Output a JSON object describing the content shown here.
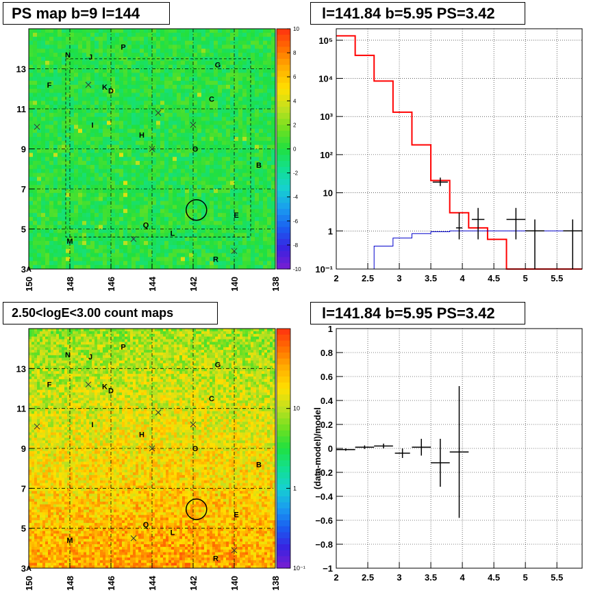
{
  "titles": {
    "ps_map": "PS map b=9 l=144",
    "spectrum": "l=141.84 b=5.95 PS=3.42",
    "count_map": "2.50<logE<3.00 count maps",
    "residual": "l=141.84 b=5.95 PS=3.42"
  },
  "colors": {
    "data": "#000000",
    "model_total": "#ff0000",
    "model_background": "#0000cc",
    "palette": [
      "#7a1fd1",
      "#3a22e0",
      "#1a5cf0",
      "#1a9cf0",
      "#16d0d0",
      "#12e090",
      "#20e040",
      "#70e020",
      "#c0e020",
      "#ffe000",
      "#ffb000",
      "#ff7000",
      "#ff3010"
    ]
  },
  "chart_data": [
    {
      "id": "ps_map",
      "type": "heatmap",
      "title": "PS map b=9 l=144",
      "xlabel": "",
      "ylabel": "",
      "x_ticks": [
        "150",
        "148",
        "146",
        "144",
        "142",
        "140",
        "138"
      ],
      "y_ticks": [
        "3",
        "5",
        "7",
        "9",
        "11",
        "13"
      ],
      "xlim": [
        150,
        138
      ],
      "ylim": [
        3,
        15
      ],
      "colorbar": {
        "scale": "linear",
        "range": [
          -10,
          10
        ],
        "ticks": [
          "10",
          "8",
          "6",
          "4",
          "2",
          "0",
          "-2",
          "-4",
          "-6",
          "-8",
          "-10"
        ]
      },
      "grid": true,
      "sources": [
        {
          "label": "N",
          "l": 148.1,
          "b": 13.7
        },
        {
          "label": "J",
          "l": 147.0,
          "b": 13.6
        },
        {
          "label": "P",
          "l": 145.4,
          "b": 14.1
        },
        {
          "label": "G",
          "l": 140.8,
          "b": 13.2
        },
        {
          "label": "F",
          "l": 149.0,
          "b": 12.2
        },
        {
          "label": "K",
          "l": 146.3,
          "b": 12.1
        },
        {
          "label": "D",
          "l": 146.0,
          "b": 11.9
        },
        {
          "label": "C",
          "l": 141.1,
          "b": 11.5
        },
        {
          "label": "I",
          "l": 146.9,
          "b": 10.2
        },
        {
          "label": "H",
          "l": 144.5,
          "b": 9.7
        },
        {
          "label": "O",
          "l": 141.9,
          "b": 9.0
        },
        {
          "label": "B",
          "l": 138.8,
          "b": 8.2
        },
        {
          "label": "E",
          "l": 139.9,
          "b": 5.7
        },
        {
          "label": "Q",
          "l": 144.3,
          "b": 5.2
        },
        {
          "label": "L",
          "l": 143.0,
          "b": 4.8
        },
        {
          "label": "M",
          "l": 148.0,
          "b": 4.4
        },
        {
          "label": "R",
          "l": 140.9,
          "b": 3.5
        },
        {
          "label": "A",
          "l": 150.0,
          "b": 3.0
        }
      ],
      "crosses": [
        [
          149.6,
          10.1
        ],
        [
          147.1,
          12.2
        ],
        [
          143.7,
          10.8
        ],
        [
          142.0,
          10.2
        ],
        [
          144.0,
          9.0
        ],
        [
          144.9,
          4.5
        ],
        [
          140.0,
          3.9
        ]
      ],
      "circle": {
        "l": 141.84,
        "b": 5.95,
        "r": 0.5
      }
    },
    {
      "id": "spectrum",
      "type": "line",
      "title": "l=141.84 b=5.95 PS=3.42",
      "xlabel": "",
      "ylabel": "",
      "xlim": [
        2,
        5.9
      ],
      "ylim": [
        0.1,
        200000
      ],
      "yscale": "log",
      "x_ticks": [
        "2",
        "2.5",
        "3",
        "3.5",
        "4",
        "4.5",
        "5",
        "5.5"
      ],
      "y_ticks": [
        "10⁻¹",
        "1",
        "10",
        "10²",
        "10³",
        "10⁴",
        "10⁵"
      ],
      "grid": true,
      "series": [
        {
          "role": "model_total",
          "style": "step",
          "bin_edges": [
            2,
            2.3,
            2.6,
            2.9,
            3.2,
            3.5,
            3.8,
            4.1,
            4.4,
            4.7,
            5.0,
            5.3,
            5.6,
            5.9
          ],
          "values": [
            130000,
            40000,
            8500,
            1300,
            180,
            21,
            3,
            1.2,
            0.6,
            0.1,
            0.1,
            0.1,
            0.1
          ]
        },
        {
          "role": "model_background",
          "style": "step",
          "bin_edges": [
            2,
            2.3,
            2.6,
            2.9,
            3.2,
            3.5,
            3.8,
            4.1,
            4.4,
            4.7,
            5.0,
            5.3,
            5.6,
            5.9
          ],
          "values": [
            0.02,
            0.05,
            0.4,
            0.65,
            0.85,
            0.95,
            1.0,
            1.0,
            1.0,
            1.0,
            1.0,
            1.0,
            1.0
          ]
        },
        {
          "role": "data",
          "style": "errorbar",
          "points": [
            {
              "x": 3.65,
              "y": 19,
              "xerr": 0.12,
              "ylo": 15,
              "yhi": 25
            },
            {
              "x": 3.95,
              "y": 1.2,
              "xerr": 0.05,
              "ylo": 0.6,
              "yhi": 3.0
            },
            {
              "x": 4.25,
              "y": 2.0,
              "xerr": 0.1,
              "ylo": 0.6,
              "yhi": 4.0
            },
            {
              "x": 4.85,
              "y": 2.0,
              "xerr": 0.15,
              "ylo": 0.6,
              "yhi": 4.0
            },
            {
              "x": 5.15,
              "y": 1.0,
              "xerr": 0.15,
              "ylo": 0.1,
              "yhi": 2.0
            },
            {
              "x": 5.75,
              "y": 1.0,
              "xerr": 0.15,
              "ylo": 0.1,
              "yhi": 2.0
            }
          ]
        }
      ]
    },
    {
      "id": "count_map",
      "type": "heatmap",
      "title": "2.50<logE<3.00 count maps",
      "xlabel": "",
      "ylabel": "",
      "x_ticks": [
        "150",
        "148",
        "146",
        "144",
        "142",
        "140",
        "138"
      ],
      "y_ticks": [
        "3",
        "5",
        "7",
        "9",
        "11",
        "13"
      ],
      "xlim": [
        150,
        138
      ],
      "ylim": [
        3,
        15
      ],
      "colorbar": {
        "scale": "log",
        "range": [
          0.1,
          100
        ],
        "ticks": [
          "10",
          "1",
          "10⁻¹"
        ]
      },
      "grid": true
    },
    {
      "id": "residual",
      "type": "scatter",
      "title": "l=141.84 b=5.95 PS=3.42",
      "xlabel": "",
      "ylabel": "(data-model)/model",
      "xlim": [
        2,
        5.9
      ],
      "ylim": [
        -1,
        1
      ],
      "x_ticks": [
        "2",
        "2.5",
        "3",
        "3.5",
        "4",
        "4.5",
        "5",
        "5.5"
      ],
      "y_ticks": [
        "1",
        "0.8",
        "0.6",
        "0.4",
        "0.2",
        "0",
        "−0.2",
        "−0.4",
        "−0.6",
        "−0.8",
        "−1"
      ],
      "grid": true,
      "points": [
        {
          "x": 2.15,
          "y": -0.01,
          "xerr": 0.15,
          "yerr": 0.01
        },
        {
          "x": 2.45,
          "y": 0.01,
          "xerr": 0.15,
          "yerr": 0.015
        },
        {
          "x": 2.75,
          "y": 0.02,
          "xerr": 0.15,
          "yerr": 0.02
        },
        {
          "x": 3.05,
          "y": -0.04,
          "xerr": 0.12,
          "yerr": 0.04
        },
        {
          "x": 3.35,
          "y": 0.01,
          "xerr": 0.15,
          "yerr": 0.07
        },
        {
          "x": 3.65,
          "y": -0.12,
          "xerr": 0.15,
          "yerr": 0.2
        },
        {
          "x": 3.95,
          "y": -0.03,
          "xerr": 0.15,
          "yerr": 0.55
        }
      ]
    }
  ]
}
